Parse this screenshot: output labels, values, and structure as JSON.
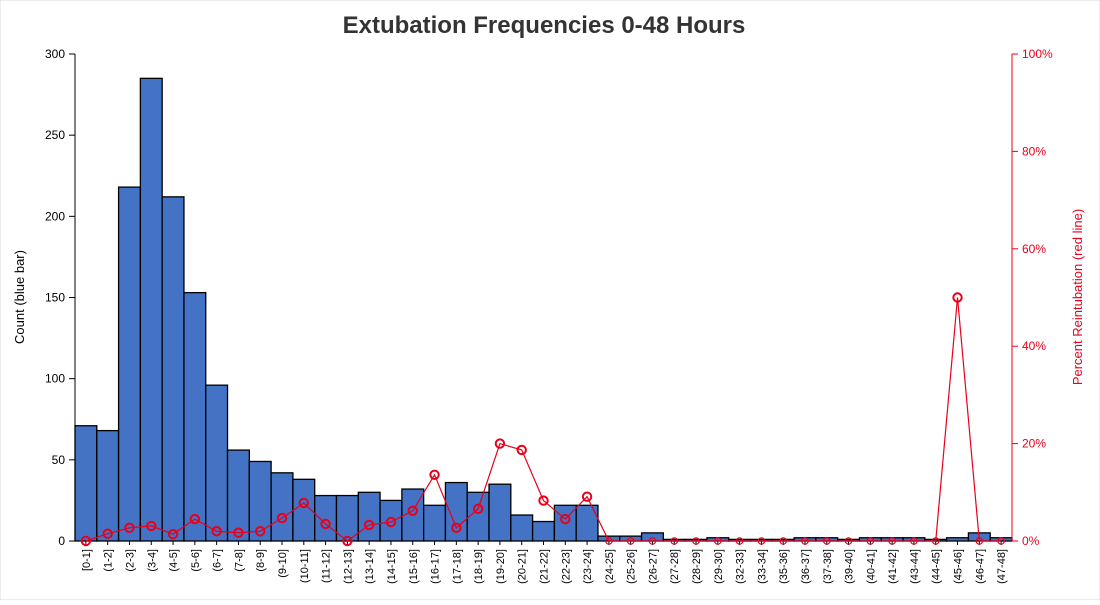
{
  "chart_data": {
    "type": "bar",
    "title": "Extubation Frequencies 0-48 Hours",
    "ylabel": "Count (blue bar)",
    "y2label": "Percent Reintubation (red line)",
    "ylim": [
      0,
      300
    ],
    "y2lim": [
      0,
      100
    ],
    "yticks": [
      "0",
      "50",
      "100",
      "150",
      "200",
      "250",
      "300"
    ],
    "y2ticks": [
      "0%",
      "20%",
      "40%",
      "60%",
      "80%",
      "100%"
    ],
    "categories": [
      "[0-1]",
      "(1-2]",
      "(2-3]",
      "(3-4]",
      "(4-5]",
      "(5-6]",
      "(6-7]",
      "(7-8]",
      "(8-9]",
      "(9-10]",
      "(10-11]",
      "(11-12]",
      "(12-13]",
      "(13-14]",
      "(14-15]",
      "(15-16]",
      "(16-17]",
      "(17-18]",
      "(18-19]",
      "(19-20]",
      "(20-21]",
      "(21-22]",
      "(22-23]",
      "(23-24]",
      "(24-25]",
      "(25-26]",
      "(26-27]",
      "(27-28]",
      "(28-29]",
      "(29-30]",
      "(32-33]",
      "(33-34]",
      "(35-36]",
      "(36-37]",
      "(37-38]",
      "(39-40]",
      "(40-41]",
      "(41-42]",
      "(43-44]",
      "(44-45]",
      "(45-46]",
      "(46-47]",
      "(47-48]"
    ],
    "series": [
      {
        "name": "Count",
        "axis": "left",
        "color": "#4472C4",
        "values": [
          71,
          68,
          218,
          285,
          212,
          153,
          96,
          56,
          49,
          42,
          38,
          28,
          28,
          30,
          25,
          32,
          22,
          36,
          30,
          35,
          16,
          12,
          22,
          22,
          3,
          3,
          5,
          1,
          1,
          2,
          1,
          1,
          1,
          2,
          2,
          1,
          2,
          2,
          2,
          1,
          2,
          5,
          2
        ]
      },
      {
        "name": "Percent Reintubation",
        "axis": "right",
        "color": "#E8001C",
        "values": [
          0,
          1.5,
          2.7,
          3.1,
          1.4,
          4.5,
          2.0,
          1.7,
          2.0,
          4.7,
          7.8,
          3.5,
          0,
          3.3,
          3.9,
          6.2,
          13.6,
          2.7,
          6.6,
          20.0,
          18.7,
          8.3,
          4.5,
          9.1,
          0,
          0,
          0,
          0,
          0,
          0,
          0,
          0,
          0,
          0,
          0,
          0,
          0,
          0,
          0,
          0,
          50.0,
          0,
          0
        ]
      }
    ],
    "grid": false
  }
}
